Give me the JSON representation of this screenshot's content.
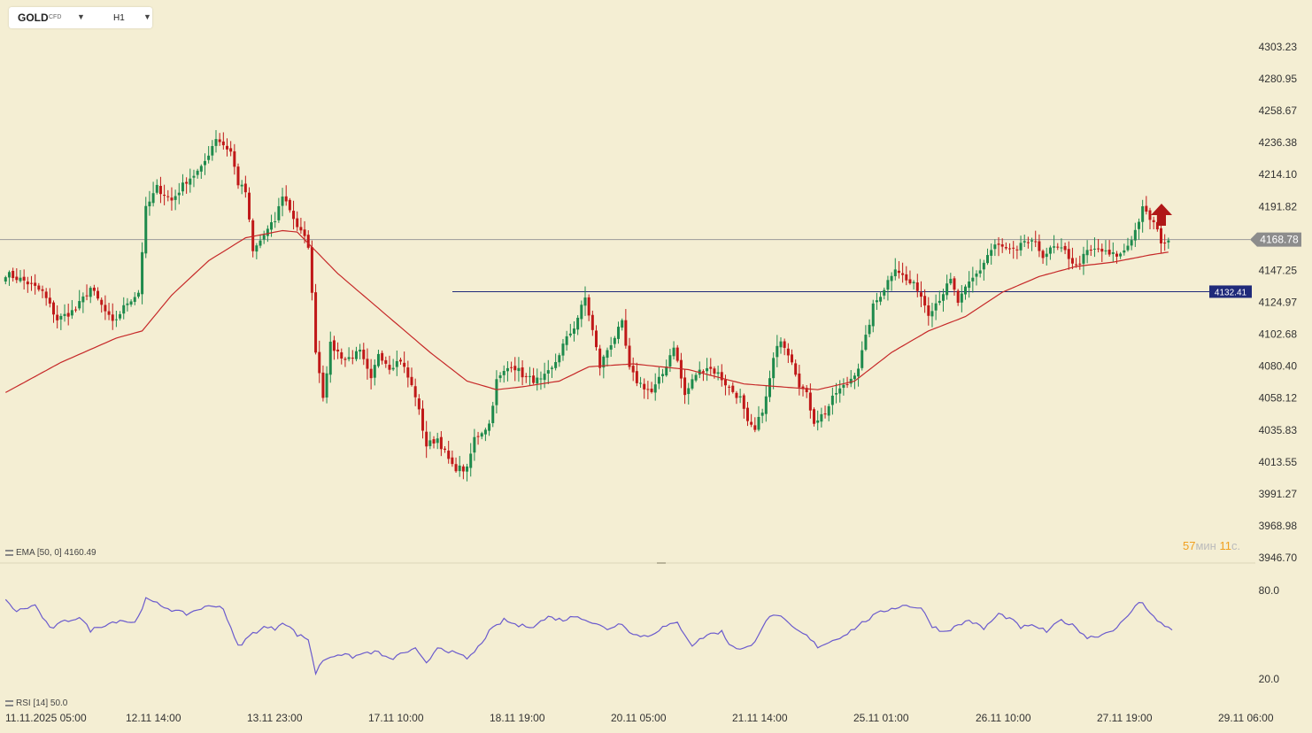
{
  "symbol": {
    "name": "GOLD",
    "type": "CFD",
    "timeframe": "H1"
  },
  "indicators": {
    "ema_label": "EMA [50, 0] 4160.49",
    "rsi_label": "RSI [14] 50.0"
  },
  "timer": {
    "min_value": "57",
    "min_unit": "мин",
    "sec_value": "11",
    "sec_unit": "с."
  },
  "colors": {
    "background": "#f4eed3",
    "bull": "#1e8a4c",
    "bear": "#c01818",
    "ema": "#c62828",
    "rsi": "#6a5acd",
    "level": "#1f2a7a",
    "price_tag": "#8c8c8c",
    "signal_arrow": "#b01818"
  },
  "chart_data": {
    "type": "candlestick",
    "y_axis_ticks": [
      "4303.23",
      "4280.95",
      "4258.67",
      "4236.38",
      "4214.10",
      "4191.82",
      "4147.25",
      "4124.97",
      "4102.68",
      "4080.40",
      "4058.12",
      "4035.83",
      "4013.55",
      "3991.27",
      "3968.98",
      "3946.70"
    ],
    "ylim": [
      3946.7,
      4303.23
    ],
    "x_axis_ticks": [
      "11.11.2025 05:00",
      "12.11 14:00",
      "13.11 23:00",
      "17.11 10:00",
      "18.11 19:00",
      "20.11 05:00",
      "21.11 14:00",
      "25.11 01:00",
      "26.11 10:00",
      "27.11 19:00",
      "29.11 06:00"
    ],
    "current_price": "4168.78",
    "horizontal_level": "4132.41",
    "close_anchors": [
      [
        0,
        4145
      ],
      [
        5,
        4140
      ],
      [
        10,
        4132
      ],
      [
        14,
        4113
      ],
      [
        19,
        4120
      ],
      [
        23,
        4135
      ],
      [
        29,
        4110
      ],
      [
        33,
        4125
      ],
      [
        36,
        4132
      ],
      [
        38,
        4190
      ],
      [
        41,
        4205
      ],
      [
        45,
        4196
      ],
      [
        49,
        4210
      ],
      [
        53,
        4218
      ],
      [
        57,
        4240
      ],
      [
        61,
        4230
      ],
      [
        63,
        4208
      ],
      [
        65,
        4202
      ],
      [
        67,
        4160
      ],
      [
        70,
        4172
      ],
      [
        73,
        4182
      ],
      [
        75,
        4200
      ],
      [
        77,
        4190
      ],
      [
        79,
        4178
      ],
      [
        82,
        4165
      ],
      [
        83,
        4130
      ],
      [
        84,
        4092
      ],
      [
        86,
        4060
      ],
      [
        88,
        4095
      ],
      [
        92,
        4085
      ],
      [
        96,
        4090
      ],
      [
        99,
        4070
      ],
      [
        101,
        4090
      ],
      [
        104,
        4080
      ],
      [
        107,
        4085
      ],
      [
        111,
        4060
      ],
      [
        114,
        4025
      ],
      [
        117,
        4030
      ],
      [
        121,
        4010
      ],
      [
        125,
        4008
      ],
      [
        127,
        4030
      ],
      [
        131,
        4040
      ],
      [
        133,
        4070
      ],
      [
        137,
        4082
      ],
      [
        141,
        4072
      ],
      [
        145,
        4070
      ],
      [
        148,
        4078
      ],
      [
        151,
        4095
      ],
      [
        154,
        4108
      ],
      [
        157,
        4128
      ],
      [
        159,
        4105
      ],
      [
        161,
        4080
      ],
      [
        163,
        4092
      ],
      [
        167,
        4110
      ],
      [
        169,
        4078
      ],
      [
        171,
        4070
      ],
      [
        175,
        4062
      ],
      [
        178,
        4075
      ],
      [
        181,
        4095
      ],
      [
        184,
        4060
      ],
      [
        187,
        4075
      ],
      [
        190,
        4080
      ],
      [
        193,
        4075
      ],
      [
        196,
        4065
      ],
      [
        199,
        4058
      ],
      [
        201,
        4040
      ],
      [
        203,
        4035
      ],
      [
        206,
        4058
      ],
      [
        208,
        4085
      ],
      [
        210,
        4100
      ],
      [
        213,
        4085
      ],
      [
        215,
        4068
      ],
      [
        217,
        4060
      ],
      [
        219,
        4042
      ],
      [
        222,
        4048
      ],
      [
        225,
        4062
      ],
      [
        228,
        4068
      ],
      [
        231,
        4080
      ],
      [
        233,
        4100
      ],
      [
        235,
        4122
      ],
      [
        238,
        4135
      ],
      [
        241,
        4150
      ],
      [
        244,
        4140
      ],
      [
        247,
        4135
      ],
      [
        250,
        4118
      ],
      [
        253,
        4128
      ],
      [
        256,
        4140
      ],
      [
        258,
        4125
      ],
      [
        261,
        4138
      ],
      [
        264,
        4148
      ],
      [
        266,
        4158
      ],
      [
        268,
        4165
      ],
      [
        271,
        4162
      ],
      [
        274,
        4160
      ],
      [
        276,
        4168
      ],
      [
        279,
        4165
      ],
      [
        281,
        4158
      ],
      [
        284,
        4163
      ],
      [
        287,
        4160
      ],
      [
        290,
        4150
      ],
      [
        293,
        4160
      ],
      [
        296,
        4162
      ],
      [
        299,
        4158
      ],
      [
        302,
        4158
      ],
      [
        304,
        4165
      ],
      [
        306,
        4175
      ],
      [
        308,
        4190
      ],
      [
        311,
        4180
      ],
      [
        313,
        4168
      ],
      [
        315,
        4166
      ]
    ],
    "ema50_anchors": [
      [
        0,
        4062
      ],
      [
        15,
        4083
      ],
      [
        30,
        4100
      ],
      [
        37,
        4105
      ],
      [
        45,
        4130
      ],
      [
        55,
        4154
      ],
      [
        65,
        4170
      ],
      [
        75,
        4175
      ],
      [
        79,
        4174
      ],
      [
        90,
        4145
      ],
      [
        105,
        4112
      ],
      [
        115,
        4090
      ],
      [
        125,
        4070
      ],
      [
        133,
        4064
      ],
      [
        140,
        4066
      ],
      [
        150,
        4070
      ],
      [
        158,
        4080
      ],
      [
        170,
        4082
      ],
      [
        185,
        4078
      ],
      [
        200,
        4068
      ],
      [
        210,
        4066
      ],
      [
        220,
        4064
      ],
      [
        230,
        4070
      ],
      [
        240,
        4090
      ],
      [
        250,
        4105
      ],
      [
        260,
        4115
      ],
      [
        270,
        4132
      ],
      [
        280,
        4143
      ],
      [
        290,
        4150
      ],
      [
        300,
        4153
      ],
      [
        310,
        4158
      ],
      [
        315,
        4160
      ]
    ],
    "rsi": {
      "y_axis_ticks": [
        "80.0",
        "20.0"
      ],
      "ylim": [
        20,
        80
      ],
      "anchors": [
        [
          0,
          73
        ],
        [
          3,
          66
        ],
        [
          8,
          70
        ],
        [
          12,
          54
        ],
        [
          16,
          59
        ],
        [
          20,
          62
        ],
        [
          23,
          53
        ],
        [
          27,
          57
        ],
        [
          31,
          60
        ],
        [
          35,
          58
        ],
        [
          38,
          74
        ],
        [
          42,
          70
        ],
        [
          46,
          66
        ],
        [
          49,
          64
        ],
        [
          53,
          68
        ],
        [
          57,
          70
        ],
        [
          59,
          68
        ],
        [
          61,
          54
        ],
        [
          63,
          42
        ],
        [
          67,
          51
        ],
        [
          70,
          55
        ],
        [
          73,
          54
        ],
        [
          75,
          59
        ],
        [
          77,
          55
        ],
        [
          79,
          50
        ],
        [
          82,
          47
        ],
        [
          84,
          24
        ],
        [
          86,
          33
        ],
        [
          90,
          37
        ],
        [
          94,
          35
        ],
        [
          98,
          38
        ],
        [
          101,
          38
        ],
        [
          104,
          33
        ],
        [
          108,
          38
        ],
        [
          111,
          40
        ],
        [
          114,
          30
        ],
        [
          117,
          42
        ],
        [
          121,
          38
        ],
        [
          125,
          34
        ],
        [
          127,
          38
        ],
        [
          131,
          52
        ],
        [
          135,
          60
        ],
        [
          139,
          56
        ],
        [
          143,
          56
        ],
        [
          147,
          62
        ],
        [
          151,
          60
        ],
        [
          155,
          63
        ],
        [
          159,
          58
        ],
        [
          163,
          54
        ],
        [
          167,
          58
        ],
        [
          170,
          50
        ],
        [
          174,
          49
        ],
        [
          178,
          55
        ],
        [
          182,
          58
        ],
        [
          186,
          43
        ],
        [
          190,
          50
        ],
        [
          194,
          52
        ],
        [
          196,
          44
        ],
        [
          199,
          40
        ],
        [
          202,
          42
        ],
        [
          206,
          60
        ],
        [
          209,
          64
        ],
        [
          213,
          55
        ],
        [
          217,
          49
        ],
        [
          220,
          42
        ],
        [
          224,
          46
        ],
        [
          228,
          51
        ],
        [
          232,
          58
        ],
        [
          236,
          64
        ],
        [
          240,
          68
        ],
        [
          244,
          70
        ],
        [
          248,
          68
        ],
        [
          251,
          56
        ],
        [
          254,
          52
        ],
        [
          257,
          55
        ],
        [
          261,
          60
        ],
        [
          265,
          54
        ],
        [
          269,
          64
        ],
        [
          272,
          61
        ],
        [
          275,
          55
        ],
        [
          279,
          56
        ],
        [
          282,
          52
        ],
        [
          286,
          60
        ],
        [
          290,
          55
        ],
        [
          293,
          48
        ],
        [
          297,
          50
        ],
        [
          301,
          55
        ],
        [
          304,
          62
        ],
        [
          306,
          70
        ],
        [
          308,
          72
        ],
        [
          312,
          59
        ],
        [
          314,
          56
        ],
        [
          316,
          54
        ]
      ]
    }
  }
}
